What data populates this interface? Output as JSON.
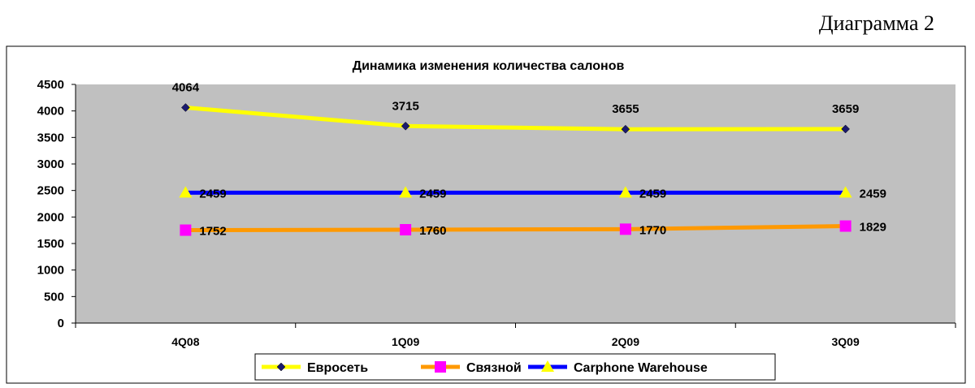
{
  "caption": "Диаграмма 2",
  "chart_data": {
    "type": "line",
    "title": "Динамика изменения количества салонов",
    "categories": [
      "4Q08",
      "1Q09",
      "2Q09",
      "3Q09"
    ],
    "ylim": [
      0,
      4500
    ],
    "yticks": [
      0,
      500,
      1000,
      1500,
      2000,
      2500,
      3000,
      3500,
      4000,
      4500
    ],
    "grid": false,
    "legend": "bottom",
    "series": [
      {
        "name": "Евросеть",
        "values": [
          4064,
          3715,
          3655,
          3659
        ],
        "color": "#ffff00",
        "marker": "diamond",
        "marker_color": "#1a1a6e"
      },
      {
        "name": "Связной",
        "values": [
          1752,
          1760,
          1770,
          1829
        ],
        "color": "#ff9900",
        "marker": "square",
        "marker_color": "#ff00ff"
      },
      {
        "name": "Carphone Warehouse",
        "values": [
          2459,
          2459,
          2459,
          2459
        ],
        "color": "#0000ff",
        "marker": "triangle",
        "marker_color": "#ffff00"
      }
    ],
    "plot_bg": "#c0c0c0"
  }
}
